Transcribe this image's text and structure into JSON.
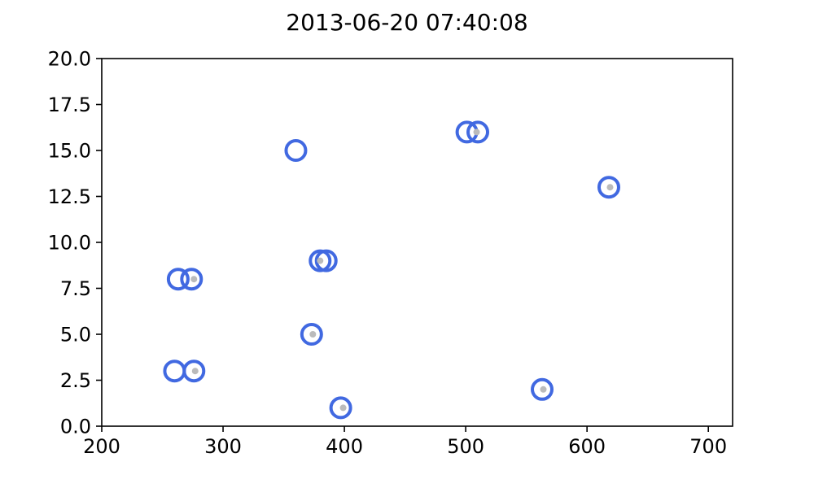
{
  "chart_data": {
    "type": "scatter",
    "title": "2013-06-20 07:40:08",
    "xlabel": "",
    "ylabel": "",
    "xlim": [
      200,
      720
    ],
    "ylim": [
      0,
      20
    ],
    "x_ticks": [
      200,
      300,
      400,
      500,
      600,
      700
    ],
    "y_ticks": [
      0.0,
      2.5,
      5.0,
      7.5,
      10.0,
      12.5,
      15.0,
      17.5,
      20.0
    ],
    "x_tick_labels": [
      "200",
      "300",
      "400",
      "500",
      "600",
      "700"
    ],
    "y_tick_labels": [
      "0.0",
      "2.5",
      "5.0",
      "7.5",
      "10.0",
      "12.5",
      "15.0",
      "17.5",
      "20.0"
    ],
    "grid": false,
    "series": [
      {
        "marker": "ring",
        "color": "#4169e1",
        "points": [
          {
            "x": 360,
            "y": 15
          },
          {
            "x": 501,
            "y": 16
          },
          {
            "x": 510,
            "y": 16
          },
          {
            "x": 618,
            "y": 13
          },
          {
            "x": 380,
            "y": 9
          },
          {
            "x": 385,
            "y": 9
          },
          {
            "x": 263,
            "y": 8
          },
          {
            "x": 274,
            "y": 8
          },
          {
            "x": 373,
            "y": 5
          },
          {
            "x": 260,
            "y": 3
          },
          {
            "x": 276,
            "y": 3
          },
          {
            "x": 397,
            "y": 1
          },
          {
            "x": 563,
            "y": 2
          }
        ]
      },
      {
        "marker": "dot",
        "color": "#bbbbbb",
        "points": [
          {
            "x": 509,
            "y": 16
          },
          {
            "x": 619,
            "y": 13
          },
          {
            "x": 380,
            "y": 9
          },
          {
            "x": 276,
            "y": 8
          },
          {
            "x": 374,
            "y": 5
          },
          {
            "x": 277,
            "y": 3
          },
          {
            "x": 399,
            "y": 1
          },
          {
            "x": 564,
            "y": 2
          }
        ]
      }
    ]
  }
}
